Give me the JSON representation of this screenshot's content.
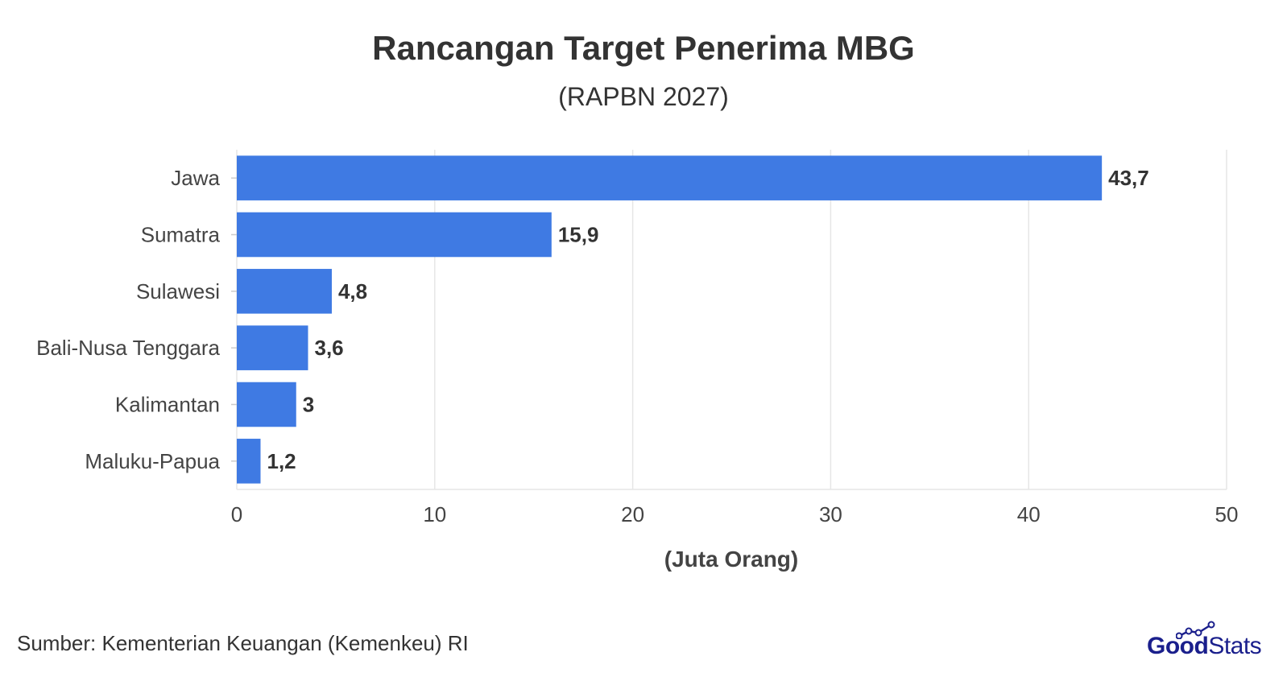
{
  "chart_data": {
    "type": "bar",
    "orientation": "horizontal",
    "title": "Rancangan Target Penerima MBG",
    "subtitle": "(RAPBN 2027)",
    "categories": [
      "Jawa",
      "Sumatra",
      "Sulawesi",
      "Bali-Nusa Tenggara",
      "Kalimantan",
      "Maluku-Papua"
    ],
    "values": [
      43.7,
      15.9,
      4.8,
      3.6,
      3,
      1.2
    ],
    "data_labels": [
      "43,7",
      "15,9",
      "4,8",
      "3,6",
      "3",
      "1,2"
    ],
    "xlabel": "(Juta Orang)",
    "ylabel": "",
    "xlim": [
      0,
      50
    ],
    "xticks": [
      0,
      10,
      20,
      30,
      40,
      50
    ],
    "xtick_labels": [
      "0",
      "10",
      "20",
      "30",
      "40",
      "50"
    ],
    "grid": true,
    "bar_color": "#3f7ae3"
  },
  "footer": {
    "source": "Sumber: Kementerian Keuangan (Kemenkeu) RI"
  },
  "logo": {
    "part1": "Good",
    "part2": "Stats",
    "color": "#1a1f8c"
  }
}
